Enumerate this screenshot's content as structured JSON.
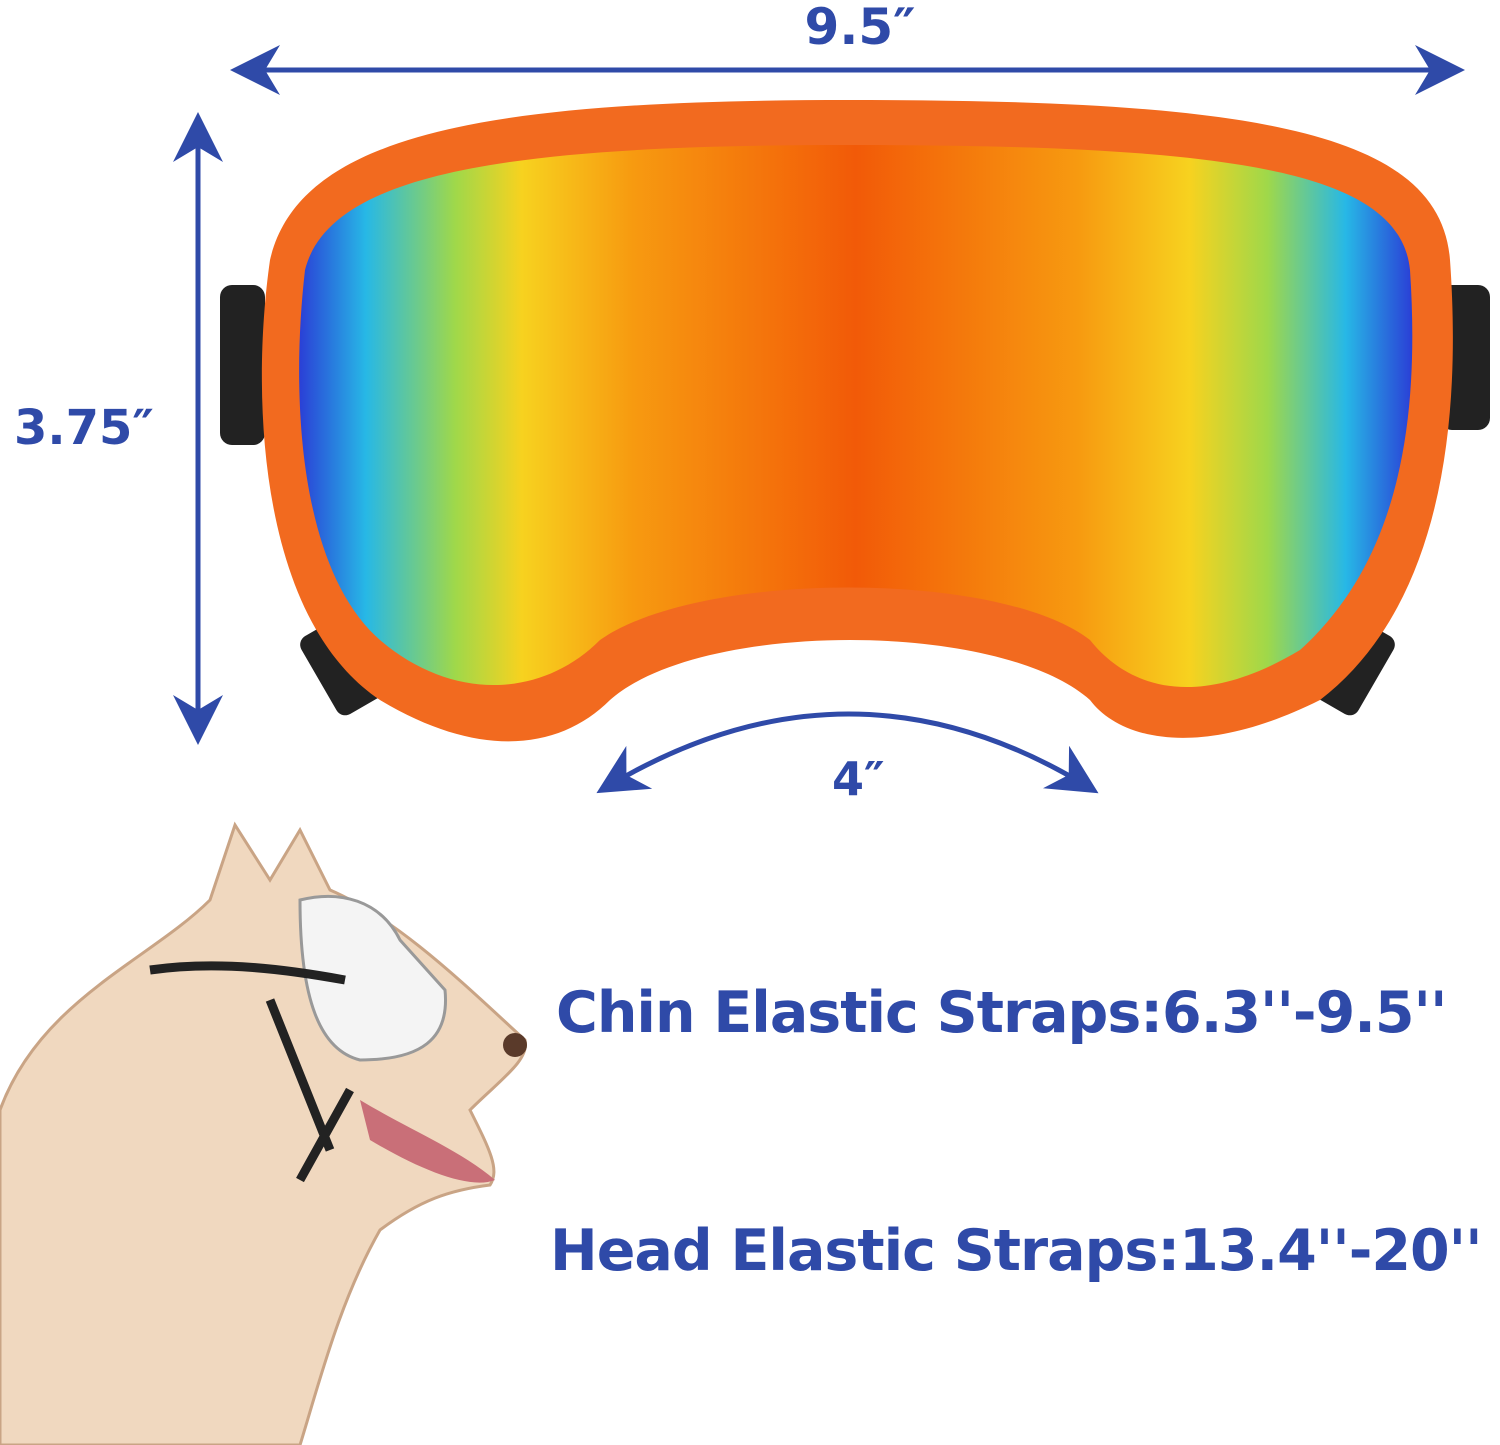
{
  "dimensions": {
    "width_label": "9.5″",
    "height_label": "3.75″",
    "nose_label": "4″"
  },
  "straps": {
    "chin": "Chin Elastic Straps:6.3''-9.5''",
    "head": "Head Elastic Straps:13.4''-20''"
  },
  "colors": {
    "text": "#2f4aa8",
    "frame": "#f26a1f",
    "arrow": "#2f4aa8"
  }
}
